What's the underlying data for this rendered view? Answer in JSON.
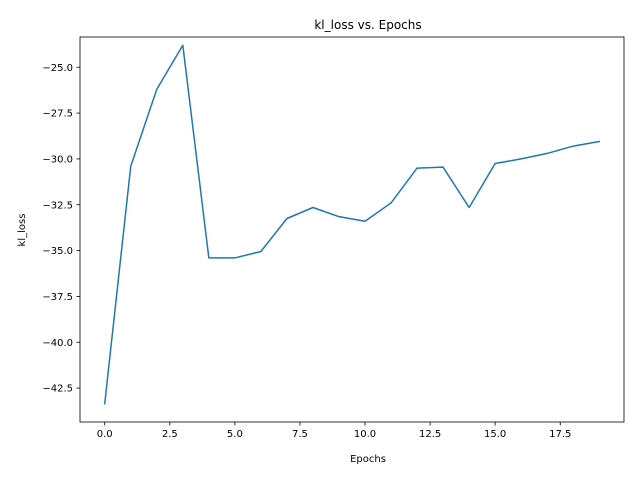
{
  "chart_data": {
    "type": "line",
    "title": "kl_loss vs. Epochs",
    "xlabel": "Epochs",
    "ylabel": "kl_loss",
    "xlim": [
      -0.95,
      19.95
    ],
    "ylim": [
      -44.35,
      -23.35
    ],
    "grid": false,
    "x_ticks": [
      0.0,
      2.5,
      5.0,
      7.5,
      10.0,
      12.5,
      15.0,
      17.5
    ],
    "x_tick_labels": [
      "0.0",
      "2.5",
      "5.0",
      "7.5",
      "10.0",
      "12.5",
      "15.0",
      "17.5"
    ],
    "y_ticks": [
      -42.5,
      -40.0,
      -37.5,
      -35.0,
      -32.5,
      -30.0,
      -27.5,
      -25.0
    ],
    "y_tick_labels": [
      "−42.5",
      "−40.0",
      "−37.5",
      "−35.0",
      "−32.5",
      "−30.0",
      "−27.5",
      "−25.0"
    ],
    "series": [
      {
        "color": "#1f77b4",
        "x": [
          0,
          1,
          2,
          3,
          4,
          5,
          6,
          7,
          8,
          9,
          10,
          11,
          12,
          13,
          14,
          15,
          16,
          17,
          18,
          19
        ],
        "y": [
          -43.35,
          -30.4,
          -26.2,
          -23.8,
          -35.4,
          -35.4,
          -35.05,
          -33.25,
          -32.65,
          -33.15,
          -33.4,
          -32.4,
          -30.5,
          -30.45,
          -32.65,
          -30.25,
          -30.0,
          -29.7,
          -29.3,
          -29.05
        ]
      }
    ]
  }
}
